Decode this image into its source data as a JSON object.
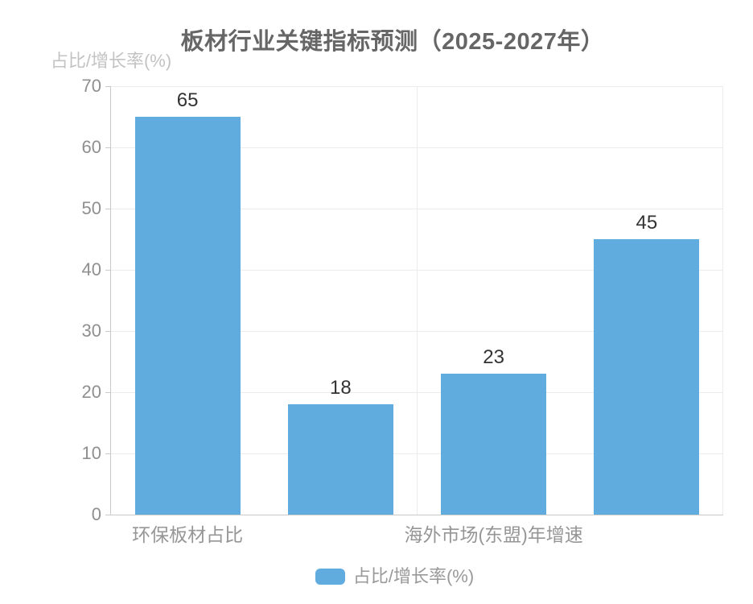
{
  "chart_data": {
    "type": "bar",
    "title": "板材行业关键指标预测（2025-2027年）",
    "ylabel": "占比/增长率(%)",
    "xlabel": "",
    "categories": [
      "环保板材占比",
      "",
      "海外市场(东盟)年增速",
      ""
    ],
    "series": [
      {
        "name": "占比/增长率(%)",
        "values": [
          65,
          18,
          23,
          45
        ],
        "color": "#61acde"
      }
    ],
    "value_labels": [
      "65",
      "18",
      "23",
      "45"
    ],
    "ylim": [
      0,
      70
    ],
    "ytick_step": 10,
    "yticks": [
      0,
      10,
      20,
      30,
      40,
      50,
      60,
      70
    ],
    "grid": true,
    "legend_position": "bottom"
  },
  "colors": {
    "bar": "#61acde",
    "title": "#666666",
    "tick_label": "#8f8f8f",
    "x_label": "#969696",
    "axis_name": "#c3c3c3",
    "grid": "#ececec",
    "axis": "#c9c9c9",
    "value_label": "#333333",
    "legend_text": "#999999",
    "background": "#ffffff"
  }
}
